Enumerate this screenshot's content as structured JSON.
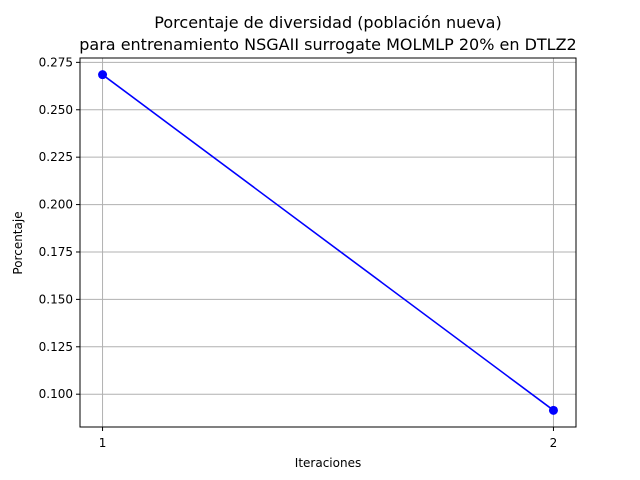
{
  "chart_data": {
    "type": "line",
    "title_line1": "Porcentaje de diversidad (población nueva)",
    "title_line2": "para entrenamiento NSGAII surrogate MOLMLP 20% en DTLZ2",
    "xlabel": "Iteraciones",
    "ylabel": "Porcentaje",
    "x": [
      1,
      2
    ],
    "series": [
      {
        "values": [
          0.2685,
          0.0915
        ],
        "color": "#0000ff",
        "marker": "circle"
      }
    ],
    "xlim": [
      0.95,
      2.05
    ],
    "ylim": [
      0.0827,
      0.2773
    ],
    "xticks": [
      1,
      2
    ],
    "xtick_labels": [
      "1",
      "2"
    ],
    "yticks": [
      0.1,
      0.125,
      0.15,
      0.175,
      0.2,
      0.225,
      0.25,
      0.275
    ],
    "ytick_labels": [
      "0.100",
      "0.125",
      "0.150",
      "0.175",
      "0.200",
      "0.225",
      "0.250",
      "0.275"
    ],
    "grid": true,
    "grid_color": "#b0b0b0"
  }
}
